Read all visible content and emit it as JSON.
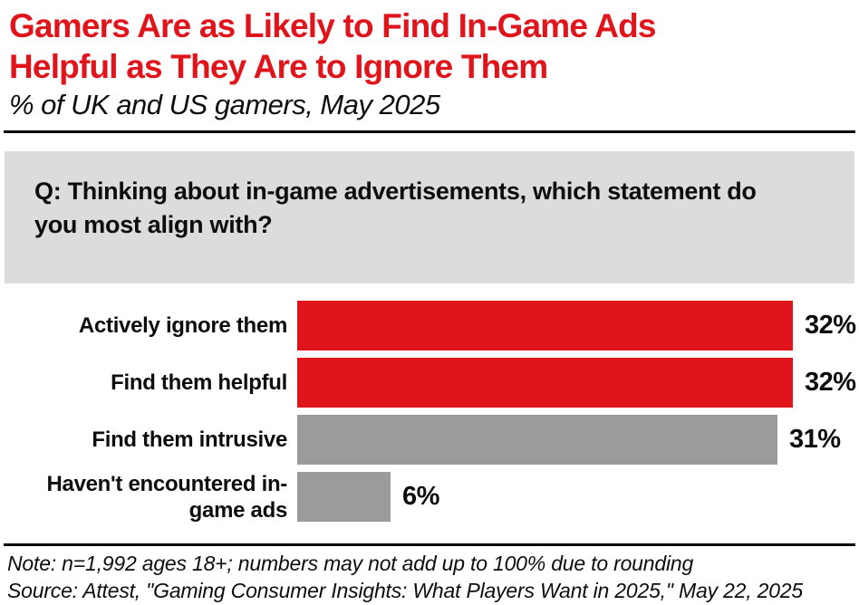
{
  "header": {
    "title_lines": [
      "Gamers Are as Likely to Find In-Game Ads",
      "Helpful as They Are to Ignore Them"
    ],
    "subtitle": "% of UK and US gamers, May 2025"
  },
  "question": {
    "text": "Q: Thinking about in-game advertisements, which statement do you most align with?"
  },
  "footer": {
    "note": "Note: n=1,992 ages 18+; numbers may not add up to 100% due to rounding",
    "source": "Source: Attest, \"Gaming Consumer Insights: What Players Want in 2025,\" May 22, 2025"
  },
  "colors": {
    "accent_red": "#e0151c",
    "bar_gray": "#9b9b9b",
    "question_box_bg": "#dcdcdc",
    "text_black": "#0d0d0d"
  },
  "chart_data": {
    "type": "bar",
    "orientation": "horizontal",
    "title": "Gamers Are as Likely to Find In-Game Ads Helpful as They Are to Ignore Them",
    "subtitle": "% of UK and US gamers, May 2025",
    "question": "Q: Thinking about in-game advertisements, which statement do you most align with?",
    "categories": [
      "Actively ignore them",
      "Find them helpful",
      "Find them intrusive",
      "Haven't encountered in-game ads"
    ],
    "values": [
      32,
      32,
      31,
      6
    ],
    "value_labels": [
      "32%",
      "32%",
      "31%",
      "6%"
    ],
    "bar_colors": [
      "#e0151c",
      "#e0151c",
      "#9b9b9b",
      "#9b9b9b"
    ],
    "unit": "%",
    "xlim": [
      0,
      32
    ],
    "grid": false,
    "legend": false,
    "value_labels_position": "end-of-bar",
    "note": "Note: n=1,992 ages 18+; numbers may not add up to 100% due to rounding",
    "source": "Source: Attest, \"Gaming Consumer Insights: What Players Want in 2025,\" May 22, 2025"
  }
}
